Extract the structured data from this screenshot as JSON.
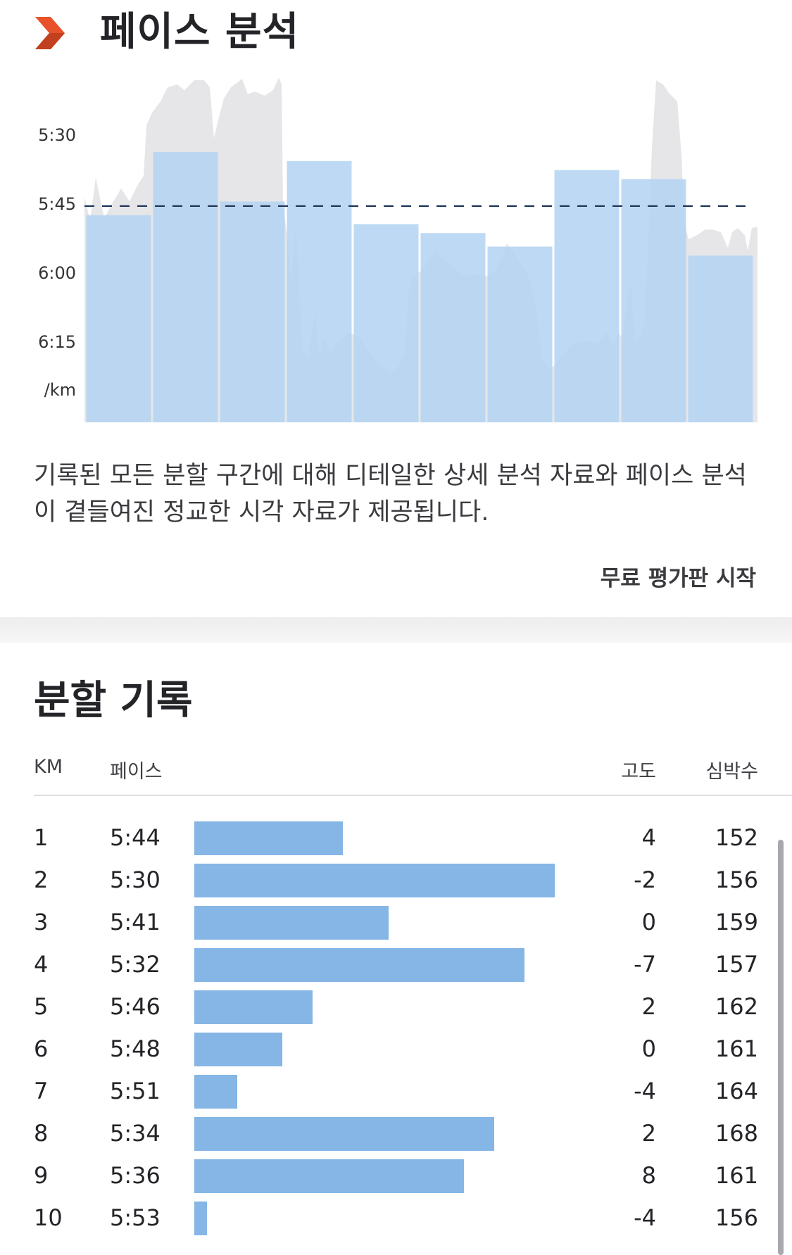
{
  "header": {
    "title": "페이스 분석",
    "brand_color": "#e8522a",
    "brand_icon": "strava-chevron-icon"
  },
  "chart_data": {
    "type": "bar",
    "categories": [
      "1",
      "2",
      "3",
      "4",
      "5",
      "6",
      "7",
      "8",
      "9",
      "10"
    ],
    "values": [
      344,
      330,
      341,
      332,
      346,
      348,
      351,
      334,
      336,
      353
    ],
    "y_unit": "/km",
    "y_tick_labels": [
      "5:30",
      "5:45",
      "6:00",
      "6:15",
      "/km"
    ],
    "y_ticks_seconds": [
      330,
      345,
      360,
      375
    ],
    "y_axis_inverted": true,
    "average_pace_seconds": 342,
    "average_line": "dashed",
    "bar_color": "#b5d4f1",
    "bar_color_highlight": "#a9c8e8",
    "background_trace_color": "#e6e6e8",
    "grid": false
  },
  "description": "기록된 모든 분할 구간에 대해 디테일한 상세 분석 자료와 페이스 분석이 곁들여진 정교한 시각 자료가 제공됩니다.",
  "trial_link": "무료 평가판 시작",
  "splits": {
    "title": "분할 기록",
    "columns": {
      "km": "KM",
      "pace": "페이스",
      "elevation": "고도",
      "heart_rate": "심박수"
    },
    "bar_color": "#85b6e6",
    "rows": [
      {
        "km": "1",
        "pace": "5:44",
        "elevation": "4",
        "heart_rate": "152",
        "pace_seconds": 344
      },
      {
        "km": "2",
        "pace": "5:30",
        "elevation": "-2",
        "heart_rate": "156",
        "pace_seconds": 330
      },
      {
        "km": "3",
        "pace": "5:41",
        "elevation": "0",
        "heart_rate": "159",
        "pace_seconds": 341
      },
      {
        "km": "4",
        "pace": "5:32",
        "elevation": "-7",
        "heart_rate": "157",
        "pace_seconds": 332
      },
      {
        "km": "5",
        "pace": "5:46",
        "elevation": "2",
        "heart_rate": "162",
        "pace_seconds": 346
      },
      {
        "km": "6",
        "pace": "5:48",
        "elevation": "0",
        "heart_rate": "161",
        "pace_seconds": 348
      },
      {
        "km": "7",
        "pace": "5:51",
        "elevation": "-4",
        "heart_rate": "164",
        "pace_seconds": 351
      },
      {
        "km": "8",
        "pace": "5:34",
        "elevation": "2",
        "heart_rate": "168",
        "pace_seconds": 334
      },
      {
        "km": "9",
        "pace": "5:36",
        "elevation": "8",
        "heart_rate": "161",
        "pace_seconds": 336
      },
      {
        "km": "10",
        "pace": "5:53",
        "elevation": "-4",
        "heart_rate": "156",
        "pace_seconds": 353
      }
    ]
  }
}
